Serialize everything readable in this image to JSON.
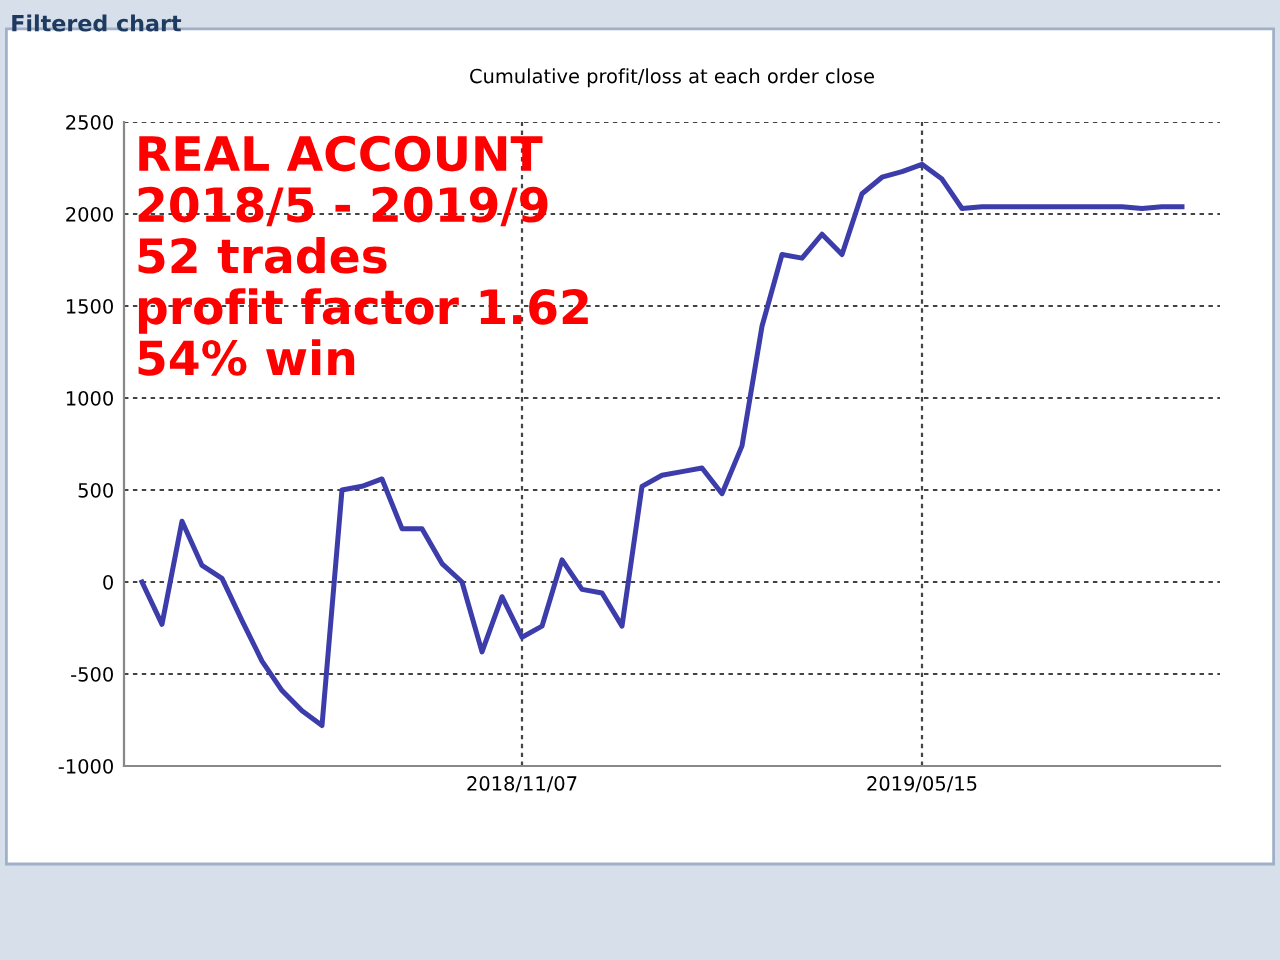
{
  "chart_data": {
    "type": "line",
    "title": "Cumulative profit/loss at each order close",
    "categories": [
      null,
      null,
      null,
      null,
      null,
      null,
      null,
      null,
      null,
      null,
      null,
      null,
      null,
      null,
      null,
      null,
      null,
      null,
      null,
      "2018/11/07",
      null,
      null,
      null,
      null,
      null,
      null,
      null,
      null,
      null,
      null,
      null,
      null,
      null,
      null,
      null,
      null,
      null,
      null,
      null,
      "2019/05/15",
      null,
      null,
      null,
      null,
      null,
      null,
      null,
      null,
      null,
      null,
      null,
      null,
      null
    ],
    "series": [
      {
        "color": "#3c3caa",
        "values": [
          0,
          -230,
          330,
          90,
          20,
          -210,
          -430,
          -590,
          -700,
          -780,
          500,
          520,
          560,
          290,
          290,
          100,
          0,
          -380,
          -80,
          -300,
          -240,
          120,
          -40,
          -60,
          -240,
          520,
          580,
          600,
          620,
          480,
          740,
          1390,
          1780,
          1760,
          1890,
          1780,
          2110,
          2200,
          2230,
          2270,
          2190,
          2030,
          2040,
          2040,
          2040,
          2040,
          2040,
          2040,
          2040,
          2040,
          2030,
          2040,
          2040
        ]
      }
    ],
    "ylim": [
      -1000,
      2500
    ],
    "yticks": [
      -1000,
      -500,
      0,
      500,
      1000,
      1500,
      2000,
      2500
    ],
    "grid": true,
    "marker": "none",
    "line_style": "solid",
    "annotations": [
      "Filtered chart",
      "REAL ACCOUNT\n2018/5 - 2019/9\n52 trades\nprofit factor 1.62\n54% win"
    ]
  }
}
